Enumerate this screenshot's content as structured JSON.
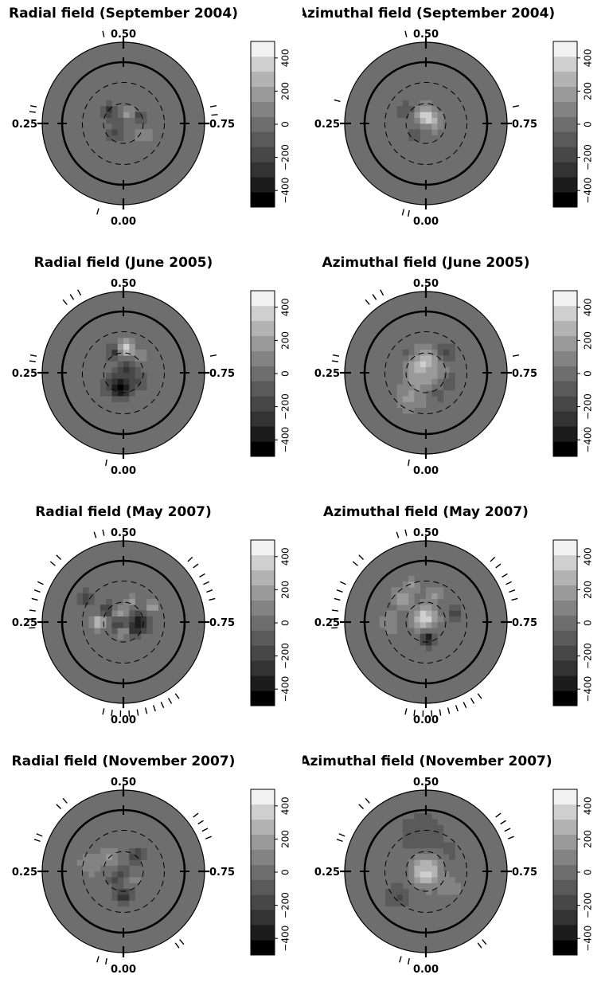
{
  "chart_data": {
    "type": "heatmap",
    "phase_labels": {
      "top": "0.50",
      "left": "0.25",
      "right": "0.75",
      "bottom": "0.00"
    },
    "colorbar": {
      "ticks": [
        400,
        200,
        0,
        -200,
        -400
      ],
      "tick_labels": [
        "400",
        "200",
        "0",
        "−200",
        "−400"
      ],
      "range": [
        -500,
        500
      ],
      "levels": 11,
      "colors": [
        "#000000",
        "#1c1c1c",
        "#333333",
        "#474747",
        "#5a5a5a",
        "#6e6e6e",
        "#838383",
        "#9a9a9a",
        "#b3b3b3",
        "#cfcfcf",
        "#f2f2f2"
      ]
    },
    "panels": [
      {
        "title": "Radial field (September 2004)",
        "obs_phases": [
          0.465,
          0.28,
          0.27,
          0.72,
          0.735,
          0.045
        ],
        "features": [
          [
            -0.18,
            0.15,
            0.06,
            -260
          ],
          [
            0.06,
            0.12,
            0.05,
            180
          ],
          [
            -0.1,
            -0.12,
            0.06,
            -180
          ],
          [
            0.2,
            0.08,
            0.05,
            -200
          ],
          [
            0.25,
            -0.15,
            0.07,
            120
          ],
          [
            -0.05,
            0.02,
            0.04,
            -120
          ]
        ]
      },
      {
        "title": "Azimuthal field (September 2004)",
        "obs_phases": [
          0.465,
          0.29,
          0.72,
          0.04,
          0.03
        ],
        "features": [
          [
            -0.02,
            0.1,
            0.08,
            330
          ],
          [
            0.08,
            0.06,
            0.06,
            200
          ],
          [
            -0.25,
            0.15,
            0.07,
            -150
          ],
          [
            0.12,
            -0.05,
            0.05,
            120
          ],
          [
            -0.15,
            -0.15,
            0.05,
            -120
          ]
        ]
      },
      {
        "title": "Radial field (June 2005)",
        "obs_phases": [
          0.42,
          0.405,
          0.39,
          0.28,
          0.27,
          0.72,
          0.03
        ],
        "features": [
          [
            0.02,
            0.3,
            0.07,
            380
          ],
          [
            -0.1,
            0.26,
            0.06,
            -300
          ],
          [
            0.05,
            0.05,
            0.07,
            -250
          ],
          [
            -0.1,
            -0.15,
            0.1,
            -250
          ],
          [
            0.0,
            -0.2,
            0.07,
            -350
          ],
          [
            0.2,
            -0.1,
            0.07,
            -150
          ],
          [
            0.2,
            0.2,
            0.06,
            120
          ]
        ]
      },
      {
        "title": "Azimuthal field (June 2005)",
        "obs_phases": [
          0.42,
          0.405,
          0.39,
          0.28,
          0.27,
          0.72,
          0.03
        ],
        "features": [
          [
            -0.02,
            0.06,
            0.14,
            380
          ],
          [
            0.0,
            0.0,
            0.06,
            -200
          ],
          [
            0.25,
            0.25,
            0.07,
            -200
          ],
          [
            -0.2,
            -0.3,
            0.12,
            150
          ],
          [
            0.3,
            -0.1,
            0.06,
            -150
          ],
          [
            0.15,
            -0.25,
            0.06,
            -120
          ],
          [
            -0.25,
            0.2,
            0.06,
            -120
          ]
        ]
      },
      {
        "title": "Radial field (May 2007)",
        "obs_phases": [
          0.465,
          0.45,
          0.375,
          0.36,
          0.32,
          0.305,
          0.29,
          0.27,
          0.255,
          0.24,
          0.71,
          0.695,
          0.68,
          0.665,
          0.645,
          0.63,
          0.035,
          0.02,
          0.005,
          0.99,
          0.975,
          0.96,
          0.945,
          0.93,
          0.915,
          0.9
        ],
        "features": [
          [
            -0.05,
            0.08,
            0.06,
            380
          ],
          [
            -0.3,
            0.0,
            0.06,
            300
          ],
          [
            0.0,
            -0.1,
            0.05,
            320
          ],
          [
            -0.05,
            0.0,
            0.07,
            -400
          ],
          [
            0.2,
            0.0,
            0.08,
            -380
          ],
          [
            -0.2,
            0.15,
            0.06,
            -250
          ],
          [
            0.12,
            -0.12,
            0.06,
            -200
          ],
          [
            0.35,
            0.2,
            0.06,
            200
          ],
          [
            -0.45,
            0.3,
            0.06,
            -200
          ],
          [
            0.1,
            0.25,
            0.05,
            150
          ]
        ]
      },
      {
        "title": "Azimuthal field (May 2007)",
        "obs_phases": [
          0.465,
          0.45,
          0.375,
          0.36,
          0.32,
          0.305,
          0.29,
          0.27,
          0.255,
          0.24,
          0.71,
          0.695,
          0.68,
          0.665,
          0.645,
          0.63,
          0.035,
          0.02,
          0.005,
          0.99,
          0.975,
          0.96,
          0.945,
          0.93,
          0.915,
          0.9
        ],
        "features": [
          [
            -0.02,
            0.05,
            0.1,
            380
          ],
          [
            0.02,
            -0.2,
            0.06,
            -400
          ],
          [
            -0.3,
            0.3,
            0.08,
            200
          ],
          [
            -0.45,
            0.0,
            0.08,
            150
          ],
          [
            0.35,
            0.1,
            0.06,
            -200
          ],
          [
            0.1,
            0.35,
            0.07,
            150
          ],
          [
            -0.15,
            0.45,
            0.06,
            150
          ]
        ]
      },
      {
        "title": "Radial field (November 2007)",
        "obs_phases": [
          0.39,
          0.375,
          0.315,
          0.305,
          0.69,
          0.675,
          0.66,
          0.645,
          0.045,
          0.03,
          0.9,
          0.89
        ],
        "features": [
          [
            -0.15,
            0.2,
            0.08,
            150
          ],
          [
            0.15,
            0.2,
            0.07,
            -200
          ],
          [
            0.0,
            0.0,
            0.06,
            -150
          ],
          [
            -0.1,
            -0.1,
            0.06,
            -200
          ],
          [
            0.1,
            -0.1,
            0.06,
            120
          ],
          [
            0.0,
            -0.3,
            0.07,
            -300
          ],
          [
            -0.4,
            0.1,
            0.1,
            120
          ]
        ]
      },
      {
        "title": "Azimuthal field (November 2007)",
        "obs_phases": [
          0.39,
          0.375,
          0.315,
          0.305,
          0.69,
          0.675,
          0.66,
          0.645,
          0.045,
          0.03,
          0.9,
          0.89
        ],
        "features": [
          [
            0.0,
            0.0,
            0.12,
            420
          ],
          [
            0.0,
            0.02,
            0.04,
            -200
          ],
          [
            -0.05,
            0.45,
            0.18,
            -130
          ],
          [
            -0.35,
            -0.3,
            0.1,
            -150
          ],
          [
            0.3,
            -0.2,
            0.08,
            120
          ],
          [
            0.3,
            0.25,
            0.07,
            -100
          ]
        ]
      }
    ]
  }
}
